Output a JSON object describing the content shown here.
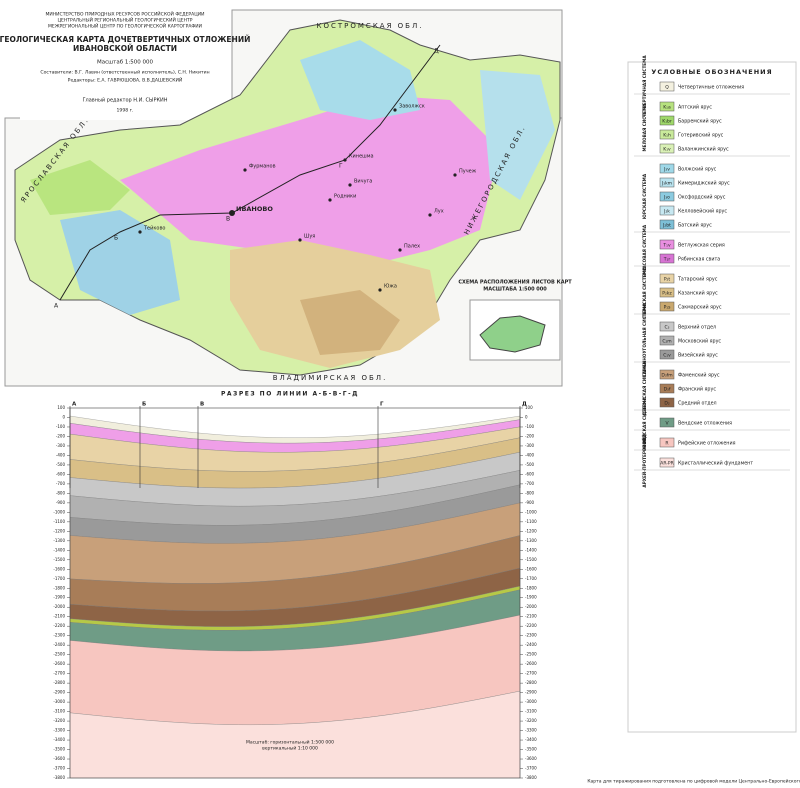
{
  "header": {
    "ministry": [
      "МИНИСТЕРСТВО ПРИРОДНЫХ РЕСУРСОВ РОССИЙСКОЙ ФЕДЕРАЦИИ",
      "ЦЕНТРАЛЬНЫЙ РЕГИОНАЛЬНЫЙ ГЕОЛОГИЧЕСКИЙ ЦЕНТР",
      "МЕЖРЕГИОНАЛЬНЫЙ ЦЕНТР ПО ГЕОЛОГИЧЕСКОЙ КАРТОГРАФИИ"
    ],
    "title": [
      "ГЕОЛОГИЧЕСКАЯ КАРТА ДОЧЕТВЕРТИЧНЫХ ОТЛОЖЕНИЙ",
      "ИВАНОВСКОЙ ОБЛАСТИ"
    ],
    "scale": "Масштаб 1:500 000",
    "compilers": "Составители: В.Г. Лавин (ответственный исполнитель), С.Н. Никитин",
    "editors": "Редакторы: Е.А. ГАВРЮШОВА, В.В.ДАШЕВСКИЙ",
    "chief_editor": "Главный редактор Н.И. СЫРКИН",
    "year": "1998 г."
  },
  "map": {
    "regions": [
      "КОСТРОМСКАЯ ОБЛ.",
      "ЯРОСЛАВСКАЯ ОБЛ.",
      "НИЖЕГОРОДСКАЯ ОБЛ.",
      "ВЛАДИМИРСКАЯ ОБЛ."
    ],
    "cities": [
      "ИВАНОВО",
      "Кинешма",
      "Шуя",
      "Фурманов",
      "Тейково",
      "Родники",
      "Вичуга",
      "Южа",
      "Пучеж",
      "Палех",
      "Заволжск",
      "Лух"
    ],
    "section_points": [
      "А",
      "Б",
      "В",
      "Г",
      "Д"
    ],
    "index_title": [
      "СХЕМА РАСПОЛОЖЕНИЯ ЛИСТОВ КАРТ",
      "МАСШТАБА 1:500 000"
    ]
  },
  "legend": {
    "title": "УСЛОВНЫЕ ОБОЗНАЧЕНИЯ",
    "groups": [
      {
        "name": "ЧЕТВЕРТИЧНАЯ СИСТЕМА",
        "items": [
          {
            "code": "Q",
            "color": "#f4f1e0",
            "text": "Четвертичные отложения"
          }
        ]
      },
      {
        "name": "МЕЛОВАЯ СИСТЕМА",
        "items": [
          {
            "code": "K₁a",
            "color": "#b7e27f",
            "text": "Аптский ярус"
          },
          {
            "code": "K₁br",
            "color": "#9fd86a",
            "text": "Барремский ярус"
          },
          {
            "code": "K₁h",
            "color": "#c9ea9b",
            "text": "Готеривский ярус"
          },
          {
            "code": "K₁v",
            "color": "#daf1b6",
            "text": "Валанжинский ярус"
          }
        ]
      },
      {
        "name": "ЮРСКАЯ СИСТЕМА",
        "items": [
          {
            "code": "J₃v",
            "color": "#9fd8e8",
            "text": "Волжский ярус"
          },
          {
            "code": "J₃km",
            "color": "#b9e3ef",
            "text": "Кимериджский ярус"
          },
          {
            "code": "J₃o",
            "color": "#8ccbe0",
            "text": "Оксфордский ярус"
          },
          {
            "code": "J₂k",
            "color": "#c7e8f1",
            "text": "Келловейский ярус"
          },
          {
            "code": "J₂bt",
            "color": "#7dbfd6",
            "text": "Батский ярус"
          }
        ]
      },
      {
        "name": "ТРИАСОВАЯ СИСТЕМА",
        "items": [
          {
            "code": "T₁v",
            "color": "#e98fe0",
            "text": "Ветлужская серия"
          },
          {
            "code": "T₁r",
            "color": "#d774d3",
            "text": "Рябинская свита"
          }
        ]
      },
      {
        "name": "ПЕРМСКАЯ СИСТЕМА",
        "items": [
          {
            "code": "P₂t",
            "color": "#e8d3a6",
            "text": "Татарский ярус"
          },
          {
            "code": "P₂kz",
            "color": "#d9bf87",
            "text": "Казанский ярус"
          },
          {
            "code": "P₁s",
            "color": "#c9a86e",
            "text": "Сакмарский ярус"
          }
        ]
      },
      {
        "name": "КАМЕННОУГОЛЬНАЯ СИСТЕМА",
        "items": [
          {
            "code": "C₃",
            "color": "#c8c8c8",
            "text": "Верхний отдел"
          },
          {
            "code": "C₂m",
            "color": "#b1b1b1",
            "text": "Московский ярус"
          },
          {
            "code": "C₁v",
            "color": "#9a9a9a",
            "text": "Визейский ярус"
          }
        ]
      },
      {
        "name": "ДЕВОНСКАЯ СИСТЕМА",
        "items": [
          {
            "code": "D₃fm",
            "color": "#c8a07a",
            "text": "Фаменский ярус"
          },
          {
            "code": "D₃f",
            "color": "#a87d58",
            "text": "Франский ярус"
          },
          {
            "code": "D₂",
            "color": "#8e6446",
            "text": "Средний отдел"
          }
        ]
      },
      {
        "name": "ВЕНДСКАЯ СИСТЕМА",
        "items": [
          {
            "code": "V",
            "color": "#6f9c86",
            "text": "Вендские отложения"
          }
        ]
      },
      {
        "name": "РИФЕЙ",
        "items": [
          {
            "code": "R",
            "color": "#f7c6c0",
            "text": "Рифейские отложения"
          }
        ]
      },
      {
        "name": "АРХЕЙ-ПРОТЕРОЗОЙ",
        "items": [
          {
            "code": "AR-PR",
            "color": "#fbe0dc",
            "text": "Кристаллический фундамент"
          }
        ]
      }
    ]
  },
  "section": {
    "title": "РАЗРЕЗ ПО ЛИНИИ А-Б-В-Г-Д",
    "points": [
      "А",
      "Б",
      "В",
      "Г",
      "Д"
    ],
    "ylim": [
      -3800,
      100
    ],
    "yticks": [
      100,
      0,
      -100,
      -200,
      -300,
      -400,
      -500,
      -600,
      -700,
      -800,
      -900,
      -1000,
      -1100,
      -1200,
      -1300,
      -1400,
      -1500,
      -1600,
      -1700,
      -1800,
      -1900,
      -2000,
      -2100,
      -2200,
      -2300,
      -2400,
      -2500,
      -2600,
      -2700,
      -2800,
      -2900,
      -3000,
      -3100,
      -3200,
      -3300,
      -3400,
      -3500,
      -3600,
      -3700,
      -3800
    ],
    "scale_note": [
      "Масштаб: горизонтальный 1:500 000",
      "вертикальный 1:10 000"
    ]
  },
  "footer": "Карта для тиражирования подготовлена по цифровой модели Центрально-Европейского РИЦ"
}
